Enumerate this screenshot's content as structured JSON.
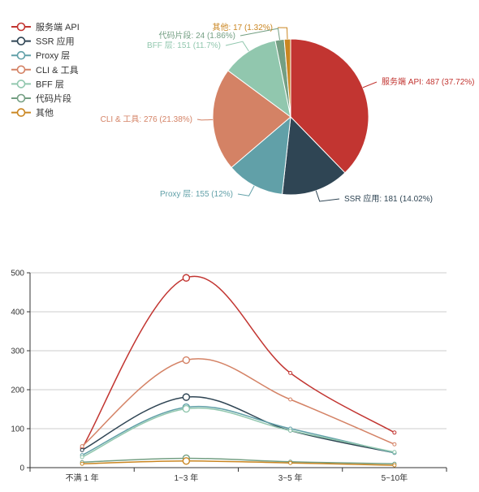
{
  "chart_data": [
    {
      "type": "pie",
      "legend": {
        "placement": "top-left",
        "items": [
          "服务端 API",
          "SSR 应用",
          "Proxy 层",
          "CLI & 工具",
          "BFF 层",
          "代码片段",
          "其他"
        ]
      },
      "slices": [
        {
          "name": "服务端 API",
          "value": 487,
          "label": "服务端 API: 487 (37.72%)",
          "color": "#c23531"
        },
        {
          "name": "SSR 应用",
          "value": 181,
          "label": "SSR 应用: 181 (14.02%)",
          "color": "#2f4554"
        },
        {
          "name": "Proxy 层",
          "value": 155,
          "label": "Proxy 层: 155 (12%)",
          "color": "#61a0a8"
        },
        {
          "name": "CLI & 工具",
          "value": 276,
          "label": "CLI & 工具: 276 (21.38%)",
          "color": "#d48265"
        },
        {
          "name": "BFF 层",
          "value": 151,
          "label": "BFF 层: 151 (11.7%)",
          "color": "#91c7ae"
        },
        {
          "name": "代码片段",
          "value": 24,
          "label": "代码片段: 24 (1.86%)",
          "color": "#749f83"
        },
        {
          "name": "其他",
          "value": 17,
          "label": "其他: 17 (1.32%)",
          "color": "#ca8622"
        }
      ]
    },
    {
      "type": "line",
      "smooth": true,
      "grid": true,
      "categories": [
        "不满 1 年",
        "1~3 年",
        "3~5 年",
        "5~10年"
      ],
      "ylim": [
        0,
        500
      ],
      "yticks": [
        "0",
        "100",
        "200",
        "300",
        "400",
        "500"
      ],
      "series": [
        {
          "name": "服务端 API",
          "color": "#c23531",
          "values": [
            50,
            487,
            243,
            90
          ]
        },
        {
          "name": "SSR 应用",
          "color": "#2f4554",
          "values": [
            45,
            181,
            95,
            38
          ]
        },
        {
          "name": "Proxy 层",
          "color": "#61a0a8",
          "values": [
            32,
            155,
            100,
            38
          ]
        },
        {
          "name": "CLI & 工具",
          "color": "#d48265",
          "values": [
            55,
            276,
            175,
            60
          ]
        },
        {
          "name": "BFF 层",
          "color": "#91c7ae",
          "values": [
            27,
            151,
            95,
            40
          ]
        },
        {
          "name": "代码片段",
          "color": "#749f83",
          "values": [
            14,
            24,
            15,
            10
          ]
        },
        {
          "name": "其他",
          "color": "#ca8622",
          "values": [
            10,
            17,
            12,
            6
          ]
        }
      ]
    }
  ]
}
